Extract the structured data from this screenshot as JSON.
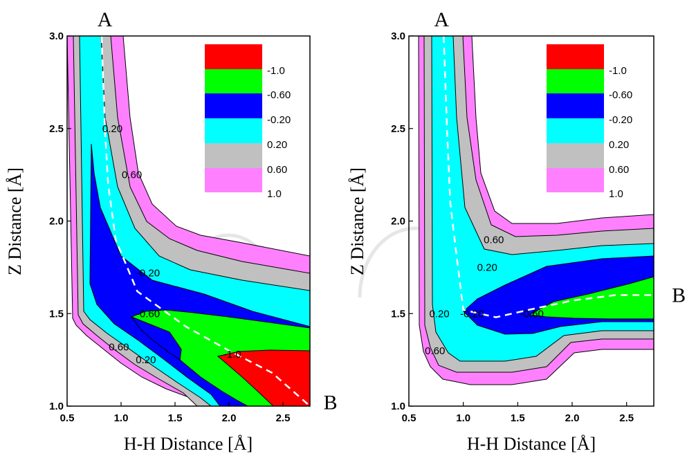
{
  "chart_data": [
    {
      "type": "contour",
      "xlabel": "H-H Distance [Å]",
      "ylabel": "Z Distance [Å]",
      "xlim": [
        0.5,
        2.75
      ],
      "ylim": [
        1.0,
        3.0
      ],
      "xticks": [
        "0.5",
        "1.0",
        "1.5",
        "2.0",
        "2.5"
      ],
      "yticks": [
        "1.0",
        "1.5",
        "2.0",
        "2.5",
        "3.0"
      ],
      "contour_levels": [
        "-1.0",
        "-0.60",
        "-0.20",
        "0.20",
        "0.60",
        "1.0"
      ],
      "level_colors": [
        "#ff0000",
        "#00ff00",
        "#0000ff",
        "#00ffff",
        "#c0c0c0",
        "#ff80ff"
      ],
      "contour_labels": [
        {
          "text": "0.20",
          "x": 0.92,
          "y": 2.5
        },
        {
          "text": "0.60",
          "x": 1.1,
          "y": 2.25
        },
        {
          "text": "-0.20",
          "x": 1.25,
          "y": 1.72
        },
        {
          "text": "-0.60",
          "x": 1.25,
          "y": 1.5
        },
        {
          "text": "-1.0",
          "x": 2.03,
          "y": 1.28
        },
        {
          "text": "0.60",
          "x": 0.98,
          "y": 1.32
        },
        {
          "text": "0.20",
          "x": 1.23,
          "y": 1.25
        }
      ],
      "reaction_path": {
        "x": [
          0.82,
          0.85,
          0.88,
          0.95,
          1.15,
          1.6,
          2.0,
          2.4,
          2.75
        ],
        "y": [
          3.0,
          2.5,
          2.2,
          1.9,
          1.62,
          1.43,
          1.3,
          1.18,
          1.0
        ]
      },
      "point_labels": [
        {
          "text": "A",
          "x": 0.85,
          "y": 3.09
        },
        {
          "text": "B",
          "x": 2.94,
          "y": 1.02
        }
      ]
    },
    {
      "type": "contour",
      "xlabel": "H-H Distance [Å]",
      "ylabel": "Z Distance [Å]",
      "xlim": [
        0.5,
        2.75
      ],
      "ylim": [
        1.0,
        3.0
      ],
      "xticks": [
        "0.5",
        "1.0",
        "1.5",
        "2.0",
        "2.5"
      ],
      "yticks": [
        "1.0",
        "1.5",
        "2.0",
        "2.5",
        "3.0"
      ],
      "contour_levels": [
        "-1.0",
        "-0.60",
        "-0.20",
        "0.20",
        "0.60",
        "1.0"
      ],
      "level_colors": [
        "#ff0000",
        "#00ff00",
        "#0000ff",
        "#00ffff",
        "#c0c0c0",
        "#ff80ff"
      ],
      "contour_labels": [
        {
          "text": "0.60",
          "x": 1.28,
          "y": 1.9
        },
        {
          "text": "0.20",
          "x": 1.22,
          "y": 1.75
        },
        {
          "text": "0.20",
          "x": 0.78,
          "y": 1.5
        },
        {
          "text": "-0.20",
          "x": 1.08,
          "y": 1.5
        },
        {
          "text": "-0.60",
          "x": 1.63,
          "y": 1.5
        },
        {
          "text": "0.60",
          "x": 0.74,
          "y": 1.3
        }
      ],
      "reaction_path": {
        "x": [
          0.82,
          0.85,
          0.88,
          0.93,
          1.0,
          1.3,
          1.6,
          2.0,
          2.4,
          2.75
        ],
        "y": [
          3.0,
          2.5,
          2.1,
          1.85,
          1.52,
          1.48,
          1.52,
          1.57,
          1.6,
          1.6
        ]
      },
      "point_labels": [
        {
          "text": "A",
          "x": 0.8,
          "y": 3.09
        },
        {
          "text": "B",
          "x": 2.98,
          "y": 1.6
        }
      ]
    }
  ]
}
